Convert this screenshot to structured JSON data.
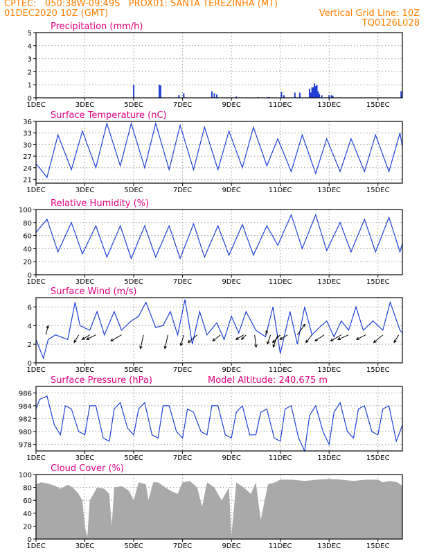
{
  "header": {
    "line1": "CPTEC:   050:38W-09:49S   PROX01: SANTA TEREZINHA (MT)",
    "line2_left": "01DEC2020 10Z (GMT)",
    "line2_right": "Vertical Grid Line: 10Z",
    "line3_right": "TQ0126L028"
  },
  "colors": {
    "header": "#ff7f00",
    "title": "#e0007f",
    "series": "#1f3fd6",
    "cloud": "#a9a9a9",
    "grid": "#999999"
  },
  "chart_data": [
    {
      "id": "precipitation",
      "type": "bar",
      "title": "Precipitation (mm/h)",
      "ylim": [
        0,
        5
      ],
      "yticks": [
        0,
        1,
        2,
        3,
        4,
        5
      ],
      "xlim": [
        0,
        15
      ],
      "xticks": [
        {
          "x": 0,
          "label": "1DEC"
        },
        {
          "x": 2,
          "label": "3DEC"
        },
        {
          "x": 4,
          "label": "5DEC"
        },
        {
          "x": 6,
          "label": "7DEC"
        },
        {
          "x": 8,
          "label": "9DEC"
        },
        {
          "x": 10,
          "label": "11DEC"
        },
        {
          "x": 12,
          "label": "13DEC"
        },
        {
          "x": 14,
          "label": "15DEC"
        }
      ],
      "x": [
        4.0,
        5.05,
        5.1,
        5.85,
        6.05,
        7.2,
        7.3,
        7.4,
        8.2,
        9.1,
        9.5,
        9.55,
        10.05,
        10.15,
        10.6,
        10.8,
        11.2,
        11.25,
        11.3,
        11.35,
        11.4,
        11.45,
        11.5,
        11.55,
        11.6,
        11.7,
        12.0,
        12.1,
        12.15,
        14.95
      ],
      "values": [
        1.0,
        1.0,
        0.95,
        0.2,
        0.35,
        0.5,
        0.35,
        0.25,
        0.1,
        0.05,
        0.05,
        0.05,
        0.45,
        0.2,
        0.4,
        0.4,
        0.7,
        0.4,
        0.8,
        0.8,
        1.1,
        0.9,
        1.0,
        0.5,
        0.3,
        0.2,
        0.2,
        0.2,
        0.15,
        0.5
      ]
    },
    {
      "id": "temperature",
      "type": "line",
      "title": "Surface Temperature (nC)",
      "ylim": [
        20,
        36
      ],
      "yticks": [
        21,
        24,
        27,
        30,
        33,
        36
      ],
      "xlim": [
        0,
        15
      ],
      "xticks": [
        {
          "x": 0,
          "label": "1DEC"
        },
        {
          "x": 2,
          "label": "3DEC"
        },
        {
          "x": 4,
          "label": "5DEC"
        },
        {
          "x": 6,
          "label": "7DEC"
        },
        {
          "x": 8,
          "label": "9DEC"
        },
        {
          "x": 10,
          "label": "11DEC"
        },
        {
          "x": 12,
          "label": "13DEC"
        },
        {
          "x": 14,
          "label": "15DEC"
        }
      ],
      "x": [
        0,
        0.2,
        0.45,
        0.9,
        1.45,
        1.9,
        2.45,
        2.9,
        3.45,
        3.9,
        4.45,
        4.9,
        5.45,
        5.9,
        6.45,
        6.9,
        7.45,
        7.9,
        8.45,
        8.9,
        9.45,
        9.9,
        10.45,
        10.9,
        11.45,
        11.9,
        12.45,
        12.9,
        13.45,
        13.9,
        14.45,
        14.9,
        15.0
      ],
      "values": [
        25,
        23.5,
        21.5,
        32.5,
        23.5,
        33.5,
        24,
        35.5,
        24.5,
        35.5,
        24,
        35.5,
        23.5,
        35,
        23.5,
        34.5,
        23.5,
        33.5,
        24,
        34.5,
        24.5,
        31.5,
        23,
        32.5,
        22.5,
        31.5,
        23,
        31.5,
        23,
        32.5,
        23,
        33,
        29.5
      ]
    },
    {
      "id": "humidity",
      "type": "line",
      "title": "Relative Humidity (%)",
      "ylim": [
        0,
        100
      ],
      "yticks": [
        0,
        20,
        40,
        60,
        80,
        100
      ],
      "xlim": [
        0,
        15
      ],
      "xticks": [
        {
          "x": 0,
          "label": "1DEC"
        },
        {
          "x": 2,
          "label": "3DEC"
        },
        {
          "x": 4,
          "label": "5DEC"
        },
        {
          "x": 6,
          "label": "7DEC"
        },
        {
          "x": 8,
          "label": "9DEC"
        },
        {
          "x": 10,
          "label": "11DEC"
        },
        {
          "x": 12,
          "label": "13DEC"
        },
        {
          "x": 14,
          "label": "15DEC"
        }
      ],
      "x": [
        0,
        0.45,
        0.9,
        1.45,
        1.9,
        2.45,
        2.9,
        3.45,
        3.9,
        4.45,
        4.9,
        5.45,
        5.9,
        6.45,
        6.9,
        7.45,
        7.9,
        8.45,
        8.9,
        9.45,
        9.9,
        10.45,
        10.9,
        11.45,
        11.9,
        12.45,
        12.9,
        13.45,
        13.9,
        14.45,
        14.9,
        15.0
      ],
      "values": [
        65,
        85,
        35,
        80,
        32,
        75,
        27,
        75,
        25,
        75,
        27,
        75,
        25,
        78,
        27,
        75,
        30,
        77,
        30,
        75,
        45,
        92,
        40,
        92,
        37,
        80,
        35,
        85,
        35,
        88,
        35,
        48
      ]
    },
    {
      "id": "wind",
      "type": "line",
      "title": "Surface Wind (m/s)",
      "ylim": [
        0,
        7
      ],
      "yticks": [
        0,
        2,
        4,
        6
      ],
      "xlim": [
        0,
        15
      ],
      "xticks": [
        {
          "x": 0,
          "label": "1DEC"
        },
        {
          "x": 2,
          "label": "3DEC"
        },
        {
          "x": 4,
          "label": "5DEC"
        },
        {
          "x": 6,
          "label": "7DEC"
        },
        {
          "x": 8,
          "label": "9DEC"
        },
        {
          "x": 10,
          "label": "11DEC"
        },
        {
          "x": 12,
          "label": "13DEC"
        },
        {
          "x": 14,
          "label": "15DEC"
        }
      ],
      "x": [
        0,
        0.3,
        0.5,
        0.8,
        1.3,
        1.6,
        1.8,
        2.2,
        2.5,
        2.8,
        3.2,
        3.5,
        3.9,
        4.2,
        4.5,
        4.9,
        5.2,
        5.5,
        5.8,
        6.1,
        6.4,
        6.7,
        7.0,
        7.4,
        7.7,
        8.0,
        8.3,
        8.6,
        9.0,
        9.4,
        9.7,
        10.0,
        10.4,
        10.7,
        11.0,
        11.3,
        11.6,
        11.9,
        12.2,
        12.5,
        12.8,
        13.1,
        13.4,
        13.8,
        14.2,
        14.5,
        14.9,
        15.0
      ],
      "values": [
        2.5,
        0.5,
        2.5,
        3.0,
        2.5,
        6.5,
        4.0,
        3.5,
        5.5,
        3.0,
        5.5,
        3.5,
        4.5,
        5.0,
        6.5,
        3.8,
        4.0,
        5.5,
        3.0,
        6.8,
        2.0,
        5.5,
        3.0,
        4.3,
        2.5,
        5.0,
        3.2,
        5.5,
        3.5,
        2.8,
        6.0,
        1.0,
        5.5,
        2.0,
        6.0,
        3.0,
        3.8,
        4.5,
        2.8,
        4.5,
        3.5,
        6.0,
        3.5,
        4.5,
        3.5,
        6.5,
        3.5,
        3.2
      ],
      "vectors": [
        {
          "x": 0.4,
          "u": 0.15,
          "v": 0.6
        },
        {
          "x": 1.75,
          "u": -0.3,
          "v": -0.5
        },
        {
          "x": 2.2,
          "u": -0.5,
          "v": -0.3
        },
        {
          "x": 2.45,
          "u": -0.6,
          "v": -0.3
        },
        {
          "x": 3.5,
          "u": -0.7,
          "v": -0.4
        },
        {
          "x": 4.4,
          "u": -0.2,
          "v": -0.9
        },
        {
          "x": 5.4,
          "u": -0.2,
          "v": -0.9
        },
        {
          "x": 6.05,
          "u": -0.2,
          "v": -0.7
        },
        {
          "x": 6.6,
          "u": -0.6,
          "v": -0.5
        },
        {
          "x": 7.55,
          "u": -0.5,
          "v": -0.4
        },
        {
          "x": 8.5,
          "u": -0.5,
          "v": -0.3
        },
        {
          "x": 8.6,
          "u": -0.3,
          "v": -0.3
        },
        {
          "x": 8.95,
          "u": 0.1,
          "v": -0.8
        },
        {
          "x": 9.4,
          "u": 0.1,
          "v": 0.3
        },
        {
          "x": 9.6,
          "u": -0.2,
          "v": -0.6
        },
        {
          "x": 9.9,
          "u": -0.3,
          "v": -0.8
        },
        {
          "x": 10.0,
          "u": -0.5,
          "v": -0.5
        },
        {
          "x": 10.3,
          "u": -0.5,
          "v": -0.3
        },
        {
          "x": 10.7,
          "u": 0.5,
          "v": 0.7
        },
        {
          "x": 11.3,
          "u": -0.4,
          "v": -0.5
        },
        {
          "x": 11.8,
          "u": -0.6,
          "v": -0.4
        },
        {
          "x": 12.5,
          "u": -0.7,
          "v": -0.4
        },
        {
          "x": 12.8,
          "u": -0.7,
          "v": -0.3
        },
        {
          "x": 13.5,
          "u": -0.6,
          "v": -0.3
        },
        {
          "x": 14.2,
          "u": -0.6,
          "v": -0.5
        },
        {
          "x": 14.85,
          "u": -0.3,
          "v": -0.5
        }
      ]
    },
    {
      "id": "pressure",
      "type": "line",
      "title": "Surface Pressure (hPa)",
      "annotation": "Model Altitude: 240.675  m",
      "ylim": [
        977,
        987
      ],
      "yticks": [
        978,
        980,
        982,
        984,
        986
      ],
      "xlim": [
        0,
        15
      ],
      "xticks": [
        {
          "x": 0,
          "label": "1DEC"
        },
        {
          "x": 2,
          "label": "3DEC"
        },
        {
          "x": 4,
          "label": "5DEC"
        },
        {
          "x": 6,
          "label": "7DEC"
        },
        {
          "x": 8,
          "label": "9DEC"
        },
        {
          "x": 10,
          "label": "11DEC"
        },
        {
          "x": 12,
          "label": "13DEC"
        },
        {
          "x": 14,
          "label": "15DEC"
        }
      ],
      "x": [
        0,
        0.15,
        0.45,
        0.75,
        1.0,
        1.2,
        1.45,
        1.75,
        2.0,
        2.2,
        2.45,
        2.75,
        3.0,
        3.2,
        3.45,
        3.75,
        4.0,
        4.2,
        4.45,
        4.75,
        5.0,
        5.2,
        5.45,
        5.75,
        6.0,
        6.2,
        6.45,
        6.75,
        7.0,
        7.2,
        7.45,
        7.75,
        8.0,
        8.2,
        8.45,
        8.75,
        9.0,
        9.2,
        9.45,
        9.75,
        10.0,
        10.2,
        10.45,
        10.75,
        11.0,
        11.2,
        11.45,
        11.75,
        12.0,
        12.2,
        12.45,
        12.75,
        13.0,
        13.2,
        13.45,
        13.75,
        14.0,
        14.2,
        14.45,
        14.75,
        15.0
      ],
      "values": [
        983.5,
        985,
        985.5,
        981,
        979.5,
        984,
        983.5,
        980,
        979.5,
        984,
        984,
        979,
        978.5,
        983.5,
        984.5,
        980.5,
        979.5,
        983.5,
        984.5,
        979.5,
        979,
        984,
        984,
        980,
        979,
        983.5,
        983,
        980,
        979.5,
        984,
        984,
        979.5,
        979,
        983,
        984,
        979.5,
        979.5,
        983,
        983.5,
        979,
        978.5,
        983.5,
        984,
        979,
        977,
        982.5,
        984,
        980,
        978,
        983,
        984.5,
        980,
        979,
        983.5,
        984,
        980,
        979.5,
        983.5,
        984,
        978.5,
        981
      ]
    },
    {
      "id": "cloud",
      "type": "area",
      "title": "Cloud Cover (%)",
      "ylim": [
        0,
        100
      ],
      "yticks": [
        0,
        20,
        40,
        60,
        80,
        100
      ],
      "xlim": [
        0,
        15
      ],
      "xticks": [
        {
          "x": 0,
          "label": "1DEC"
        },
        {
          "x": 2,
          "label": "3DEC"
        },
        {
          "x": 4,
          "label": "5DEC"
        },
        {
          "x": 6,
          "label": "7DEC"
        },
        {
          "x": 8,
          "label": "9DEC"
        },
        {
          "x": 10,
          "label": "11DEC"
        },
        {
          "x": 12,
          "label": "13DEC"
        },
        {
          "x": 14,
          "label": "15DEC"
        }
      ],
      "x": [
        0,
        0.2,
        0.5,
        0.8,
        1.0,
        1.3,
        1.5,
        1.7,
        1.9,
        2.0,
        2.1,
        2.2,
        2.5,
        2.8,
        3.0,
        3.1,
        3.2,
        3.5,
        3.8,
        4.0,
        4.2,
        4.5,
        4.6,
        4.8,
        5.0,
        5.3,
        5.5,
        5.8,
        6.0,
        6.3,
        6.6,
        6.8,
        7.0,
        7.3,
        7.6,
        7.9,
        8.0,
        8.2,
        8.5,
        8.8,
        9.0,
        9.2,
        9.5,
        9.8,
        10.0,
        10.5,
        11.0,
        11.5,
        12.0,
        12.5,
        13.0,
        13.5,
        14.0,
        14.2,
        14.5,
        14.8,
        15.0
      ],
      "values": [
        85,
        88,
        86,
        82,
        78,
        84,
        80,
        72,
        60,
        20,
        3,
        60,
        80,
        78,
        70,
        20,
        80,
        82,
        75,
        60,
        88,
        85,
        60,
        88,
        88,
        80,
        75,
        70,
        88,
        90,
        80,
        50,
        88,
        80,
        60,
        80,
        5,
        88,
        80,
        70,
        88,
        30,
        85,
        88,
        92,
        92,
        90,
        92,
        93,
        92,
        90,
        92,
        92,
        88,
        90,
        88,
        82
      ]
    }
  ]
}
